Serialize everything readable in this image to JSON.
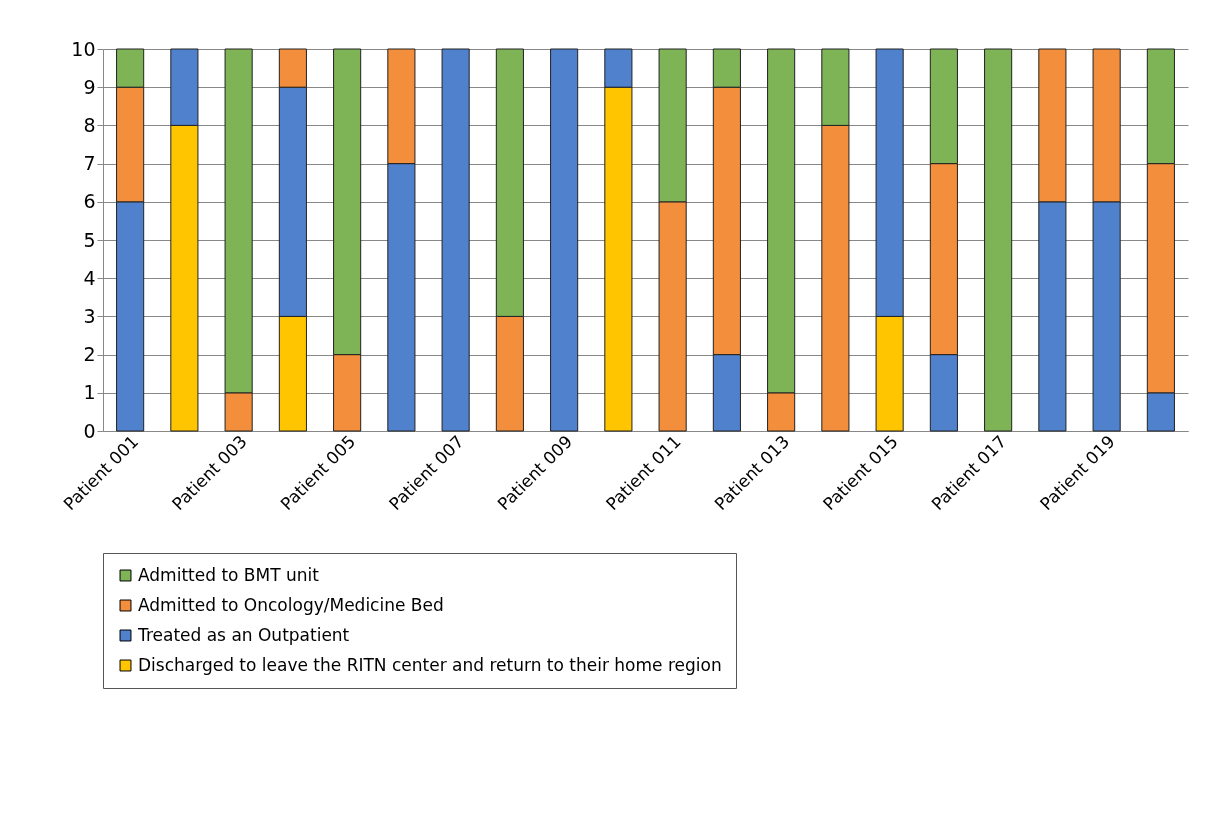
{
  "chart_data": {
    "type": "bar",
    "stacked": true,
    "categories": [
      "Patient 001",
      null,
      "Patient 003",
      null,
      "Patient 005",
      null,
      "Patient 007",
      null,
      "Patient 009",
      null,
      "Patient 011",
      null,
      "Patient 013",
      null,
      "Patient 015",
      null,
      "Patient 017",
      null,
      "Patient 019",
      null
    ],
    "series": [
      {
        "name": "Discharged to leave the RITN center and return to their home region",
        "color": "#ffc600",
        "values": [
          0,
          8,
          0,
          3,
          0,
          0,
          0,
          0,
          0,
          9,
          0,
          0,
          0,
          0,
          3,
          0,
          0,
          0,
          0,
          0
        ]
      },
      {
        "name": "Treated as an Outpatient",
        "color": "#4f81cd",
        "values": [
          6,
          2,
          0,
          6,
          0,
          7,
          10,
          0,
          10,
          1,
          0,
          2,
          0,
          0,
          7,
          2,
          0,
          6,
          6,
          1
        ]
      },
      {
        "name": "Admitted to Oncology/Medicine Bed",
        "color": "#f28e3c",
        "values": [
          3,
          0,
          1,
          1,
          2,
          3,
          0,
          3,
          0,
          0,
          6,
          7,
          1,
          8,
          0,
          5,
          0,
          4,
          4,
          6
        ]
      },
      {
        "name": "Admitted to BMT unit",
        "color": "#7eb356",
        "values": [
          1,
          0,
          9,
          0,
          8,
          0,
          0,
          7,
          0,
          0,
          4,
          1,
          9,
          2,
          0,
          3,
          10,
          0,
          0,
          3
        ]
      }
    ],
    "ylim": [
      0,
      10
    ],
    "yticks": [
      0,
      1,
      2,
      3,
      4,
      5,
      6,
      7,
      8,
      9,
      10
    ],
    "grid": "y",
    "legend": "bottom"
  }
}
